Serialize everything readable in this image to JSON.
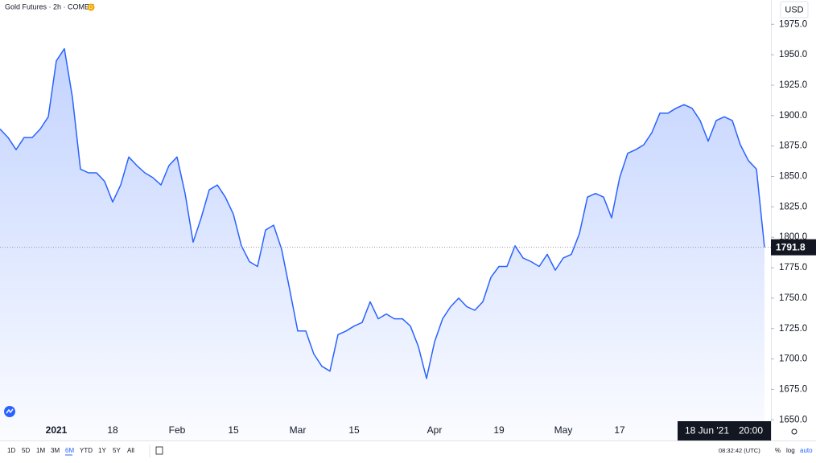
{
  "chart_data": {
    "type": "area",
    "title": "Gold Futures · 2h · COMEX",
    "badge": "D",
    "currency": "USD",
    "categories": [
      null,
      null,
      null,
      null,
      null,
      null,
      null,
      "2021",
      null,
      null,
      null,
      null,
      null,
      null,
      "18",
      null,
      null,
      null,
      null,
      null,
      null,
      null,
      "Feb",
      null,
      null,
      null,
      null,
      null,
      null,
      "15",
      null,
      null,
      null,
      null,
      null,
      null,
      null,
      "Mar",
      null,
      null,
      null,
      null,
      null,
      null,
      "15",
      null,
      null,
      null,
      null,
      null,
      null,
      null,
      null,
      null,
      "Apr",
      null,
      null,
      null,
      null,
      null,
      null,
      null,
      "19",
      null,
      null,
      null,
      null,
      null,
      null,
      null,
      "May",
      null,
      null,
      null,
      null,
      null,
      null,
      "17",
      null,
      null,
      null,
      null,
      null,
      null,
      null,
      null,
      null,
      null,
      null,
      null,
      null,
      null,
      null,
      null,
      null,
      null
    ],
    "series": [
      {
        "name": "Gold Futures",
        "color": "#2962ff",
        "values": [
          1889,
          1882,
          1872,
          1882,
          1882,
          1889,
          1899,
          1945,
          1955,
          1915,
          1856,
          1853,
          1853,
          1846,
          1829,
          1843,
          1866,
          1859,
          1853,
          1849,
          1843,
          1859,
          1866,
          1836,
          1796,
          1816,
          1839,
          1843,
          1833,
          1819,
          1793,
          1780,
          1776,
          1806,
          1810,
          1790,
          1757,
          1723,
          1723,
          1704,
          1694,
          1690,
          1720,
          1723,
          1727,
          1730,
          1747,
          1733,
          1737,
          1733,
          1733,
          1727,
          1710,
          1684,
          1714,
          1733,
          1743,
          1750,
          1743,
          1740,
          1747,
          1767,
          1776,
          1776,
          1793,
          1783,
          1780,
          1776,
          1786,
          1773,
          1783,
          1786,
          1803,
          1833,
          1836,
          1833,
          1816,
          1849,
          1869,
          1872,
          1876,
          1886,
          1902,
          1902,
          1906,
          1909,
          1906,
          1896,
          1879,
          1896,
          1899,
          1896,
          1876,
          1863,
          1856,
          1791.8
        ]
      }
    ],
    "ylim": [
      1633,
      1995
    ],
    "yticks": [
      {
        "value": 1650,
        "label": "1650.0"
      },
      {
        "value": 1675,
        "label": "1675.0"
      },
      {
        "value": 1700,
        "label": "1700.0"
      },
      {
        "value": 1725,
        "label": "1725.0"
      },
      {
        "value": 1750,
        "label": "1750.0"
      },
      {
        "value": 1775,
        "label": "1775.0"
      },
      {
        "value": 1800,
        "label": "1800.0"
      },
      {
        "value": 1825,
        "label": "1825.0"
      },
      {
        "value": 1850,
        "label": "1850.0"
      },
      {
        "value": 1875,
        "label": "1875.0"
      },
      {
        "value": 1900,
        "label": "1900.0"
      },
      {
        "value": 1925,
        "label": "1925.0"
      },
      {
        "value": 1950,
        "label": "1950.0"
      },
      {
        "value": 1975,
        "label": "1975.0"
      }
    ],
    "crosshair_label": "18 Jun '21",
    "crosshair_time": "20:00"
  },
  "toolbar": {
    "ranges": [
      "1D",
      "5D",
      "1M",
      "3M",
      "6M",
      "YTD",
      "1Y",
      "5Y",
      "All"
    ],
    "active": "6M",
    "clock": "08:32:42 (UTC)",
    "options": [
      "%",
      "log",
      "auto"
    ]
  }
}
